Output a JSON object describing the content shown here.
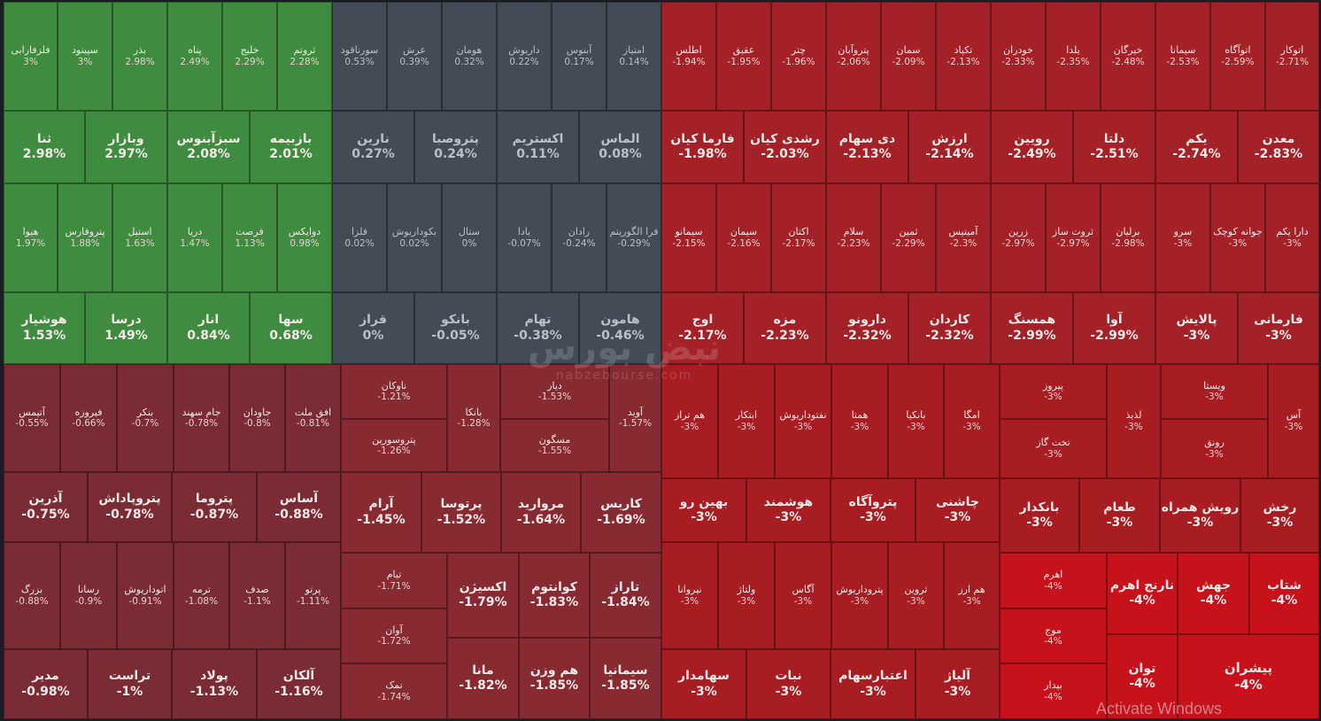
{
  "watermark": {
    "logo": "نبض بورس",
    "url": "nabzebourse.com"
  },
  "activation_notice": "Activate Windows",
  "tiles": [
    {
      "n": "فلزفارابی",
      "p": "3%",
      "c": "green",
      "t": "s"
    },
    {
      "n": "سپینود",
      "p": "3%",
      "c": "green",
      "t": "s"
    },
    {
      "n": "بذر",
      "p": "2.98%",
      "c": "green",
      "t": "s"
    },
    {
      "n": "پناه",
      "p": "2.49%",
      "c": "green",
      "t": "s"
    },
    {
      "n": "خلیج",
      "p": "2.29%",
      "c": "green",
      "t": "s"
    },
    {
      "n": "ثروتم",
      "p": "2.28%",
      "c": "green",
      "t": "s"
    },
    {
      "n": "سورناقود",
      "p": "0.53%",
      "c": "gray",
      "t": "s"
    },
    {
      "n": "عرش",
      "p": "0.39%",
      "c": "gray",
      "t": "s"
    },
    {
      "n": "هومان",
      "p": "0.32%",
      "c": "gray",
      "t": "s"
    },
    {
      "n": "داریوش",
      "p": "0.22%",
      "c": "gray",
      "t": "s"
    },
    {
      "n": "آبنوس",
      "p": "0.17%",
      "c": "gray",
      "t": "s"
    },
    {
      "n": "امتیاز",
      "p": "0.14%",
      "c": "gray",
      "t": "s"
    },
    {
      "n": "اطلس",
      "p": "-1.94%",
      "c": "red1",
      "t": "s"
    },
    {
      "n": "عقیق",
      "p": "-1.95%",
      "c": "red1",
      "t": "s"
    },
    {
      "n": "چتر",
      "p": "-1.96%",
      "c": "red1",
      "t": "s"
    },
    {
      "n": "پتروآبان",
      "p": "-2.06%",
      "c": "red1",
      "t": "s"
    },
    {
      "n": "سمان",
      "p": "-2.09%",
      "c": "red1",
      "t": "s"
    },
    {
      "n": "تکپاد",
      "p": "-2.13%",
      "c": "red1",
      "t": "s"
    },
    {
      "n": "خودران",
      "p": "-2.33%",
      "c": "red1",
      "t": "s"
    },
    {
      "n": "یلدا",
      "p": "-2.35%",
      "c": "red1",
      "t": "s"
    },
    {
      "n": "خیرگان",
      "p": "-2.48%",
      "c": "red1",
      "t": "s"
    },
    {
      "n": "سیمانا",
      "p": "-2.53%",
      "c": "red1",
      "t": "s"
    },
    {
      "n": "اتوآگاه",
      "p": "-2.59%",
      "c": "red1",
      "t": "s"
    },
    {
      "n": "اتوکار",
      "p": "-2.71%",
      "c": "red1",
      "t": "s"
    },
    {
      "n": "ثنا",
      "p": "2.98%",
      "c": "green",
      "t": "m"
    },
    {
      "n": "وبازار",
      "p": "2.97%",
      "c": "green",
      "t": "m"
    },
    {
      "n": "سبزآبنوس",
      "p": "2.08%",
      "c": "green",
      "t": "m"
    },
    {
      "n": "بازبیمه",
      "p": "2.01%",
      "c": "green",
      "t": "m"
    },
    {
      "n": "نارین",
      "p": "0.27%",
      "c": "gray",
      "t": "m"
    },
    {
      "n": "پتروصبا",
      "p": "0.24%",
      "c": "gray",
      "t": "m"
    },
    {
      "n": "اکستریم",
      "p": "0.11%",
      "c": "gray",
      "t": "m"
    },
    {
      "n": "الماس",
      "p": "0.08%",
      "c": "gray",
      "t": "m"
    },
    {
      "n": "فارما کیان",
      "p": "-1.98%",
      "c": "red1",
      "t": "m"
    },
    {
      "n": "رشدی کیان",
      "p": "-2.03%",
      "c": "red1",
      "t": "m"
    },
    {
      "n": "دی سهام",
      "p": "-2.13%",
      "c": "red1",
      "t": "m"
    },
    {
      "n": "ارزش",
      "p": "-2.14%",
      "c": "red1",
      "t": "m"
    },
    {
      "n": "رویین",
      "p": "-2.49%",
      "c": "red1",
      "t": "m"
    },
    {
      "n": "دلتا",
      "p": "-2.51%",
      "c": "red1",
      "t": "m"
    },
    {
      "n": "یکم",
      "p": "-2.74%",
      "c": "red1",
      "t": "m"
    },
    {
      "n": "معدن",
      "p": "-2.83%",
      "c": "red1",
      "t": "m"
    },
    {
      "n": "هیوا",
      "p": "1.97%",
      "c": "green",
      "t": "s"
    },
    {
      "n": "پتروفارس",
      "p": "1.88%",
      "c": "green",
      "t": "s"
    },
    {
      "n": "استیل",
      "p": "1.63%",
      "c": "green",
      "t": "s"
    },
    {
      "n": "دریا",
      "p": "1.47%",
      "c": "green",
      "t": "s"
    },
    {
      "n": "فرصت",
      "p": "1.13%",
      "c": "green",
      "t": "s"
    },
    {
      "n": "دوایکس",
      "p": "0.98%",
      "c": "green",
      "t": "s"
    },
    {
      "n": "فلزا",
      "p": "0.02%",
      "c": "gray",
      "t": "s"
    },
    {
      "n": "بکوداریوش",
      "p": "0.02%",
      "c": "gray",
      "t": "s"
    },
    {
      "n": "ستال",
      "p": "0%",
      "c": "gray",
      "t": "s"
    },
    {
      "n": "یادا",
      "p": "-0.07%",
      "c": "gray",
      "t": "s"
    },
    {
      "n": "رادان",
      "p": "-0.24%",
      "c": "gray",
      "t": "s"
    },
    {
      "n": "فرا الگوریتم",
      "p": "-0.29%",
      "c": "gray",
      "t": "s"
    },
    {
      "n": "سیمانو",
      "p": "-2.15%",
      "c": "red1",
      "t": "s"
    },
    {
      "n": "سیمان",
      "p": "-2.16%",
      "c": "red1",
      "t": "s"
    },
    {
      "n": "اکتان",
      "p": "-2.17%",
      "c": "red1",
      "t": "s"
    },
    {
      "n": "سلام",
      "p": "-2.23%",
      "c": "red1",
      "t": "s"
    },
    {
      "n": "ثمین",
      "p": "-2.29%",
      "c": "red1",
      "t": "s"
    },
    {
      "n": "آمیتیس",
      "p": "-2.3%",
      "c": "red1",
      "t": "s"
    },
    {
      "n": "زرین",
      "p": "-2.97%",
      "c": "red1",
      "t": "s"
    },
    {
      "n": "ثروت ساز",
      "p": "-2.97%",
      "c": "red1",
      "t": "s"
    },
    {
      "n": "برلیان",
      "p": "-2.98%",
      "c": "red1",
      "t": "s"
    },
    {
      "n": "سرو",
      "p": "-3%",
      "c": "red1",
      "t": "s"
    },
    {
      "n": "جوانه کوچک",
      "p": "-3%",
      "c": "red1",
      "t": "s"
    },
    {
      "n": "دارا یکم",
      "p": "-3%",
      "c": "red1",
      "t": "s"
    },
    {
      "n": "هوشیار",
      "p": "1.53%",
      "c": "green",
      "t": "m"
    },
    {
      "n": "درسا",
      "p": "1.49%",
      "c": "green",
      "t": "m"
    },
    {
      "n": "انار",
      "p": "0.84%",
      "c": "green",
      "t": "m"
    },
    {
      "n": "سها",
      "p": "0.68%",
      "c": "green",
      "t": "m"
    },
    {
      "n": "قراز",
      "p": "0%",
      "c": "gray",
      "t": "m"
    },
    {
      "n": "بانکو",
      "p": "-0.05%",
      "c": "gray",
      "t": "m"
    },
    {
      "n": "تهام",
      "p": "-0.38%",
      "c": "gray",
      "t": "m"
    },
    {
      "n": "هامون",
      "p": "-0.46%",
      "c": "gray",
      "t": "m"
    },
    {
      "n": "اوج",
      "p": "-2.17%",
      "c": "red1",
      "t": "m"
    },
    {
      "n": "مزه",
      "p": "-2.23%",
      "c": "red1",
      "t": "m"
    },
    {
      "n": "دارونو",
      "p": "-2.32%",
      "c": "red1",
      "t": "m"
    },
    {
      "n": "کاردان",
      "p": "-2.32%",
      "c": "red1",
      "t": "m"
    },
    {
      "n": "همسنگ",
      "p": "-2.99%",
      "c": "red1",
      "t": "m"
    },
    {
      "n": "آوا",
      "p": "-2.99%",
      "c": "red1",
      "t": "m"
    },
    {
      "n": "پالایش",
      "p": "-3%",
      "c": "red1",
      "t": "m"
    },
    {
      "n": "فارمانی",
      "p": "-3%",
      "c": "red1",
      "t": "m"
    },
    {
      "n": "آتیمس",
      "p": "-0.55%",
      "c": "dred",
      "t": "s"
    },
    {
      "n": "فیروزه",
      "p": "-0.66%",
      "c": "dred",
      "t": "s"
    },
    {
      "n": "بنکر",
      "p": "-0.7%",
      "c": "dred",
      "t": "s"
    },
    {
      "n": "جام سهند",
      "p": "-0.78%",
      "c": "dred",
      "t": "s"
    },
    {
      "n": "جاودان",
      "p": "-0.8%",
      "c": "dred",
      "t": "s"
    },
    {
      "n": "افق ملت",
      "p": "-0.81%",
      "c": "dred",
      "t": "s"
    },
    {
      "n": "آذرین",
      "p": "-0.75%",
      "c": "dred",
      "t": "m"
    },
    {
      "n": "پتروپاداش",
      "p": "-0.78%",
      "c": "dred",
      "t": "m"
    },
    {
      "n": "پتروما",
      "p": "-0.87%",
      "c": "dred",
      "t": "m"
    },
    {
      "n": "آساس",
      "p": "-0.88%",
      "c": "dred",
      "t": "m"
    },
    {
      "n": "بزرگ",
      "p": "-0.88%",
      "c": "dred",
      "t": "s"
    },
    {
      "n": "رسانا",
      "p": "-0.9%",
      "c": "dred",
      "t": "s"
    },
    {
      "n": "اتوداریوش",
      "p": "-0.91%",
      "c": "dred",
      "t": "s"
    },
    {
      "n": "ترمه",
      "p": "-1.08%",
      "c": "dred",
      "t": "s"
    },
    {
      "n": "صدف",
      "p": "-1.1%",
      "c": "dred",
      "t": "s"
    },
    {
      "n": "پرتو",
      "p": "-1.11%",
      "c": "dred",
      "t": "s"
    },
    {
      "n": "مدیر",
      "p": "-0.98%",
      "c": "dred",
      "t": "m"
    },
    {
      "n": "تراست",
      "p": "-1%",
      "c": "dred",
      "t": "m"
    },
    {
      "n": "پولاد",
      "p": "-1.13%",
      "c": "dred",
      "t": "m"
    },
    {
      "n": "آلکان",
      "p": "-1.16%",
      "c": "dred",
      "t": "m"
    },
    {
      "n": "ناوکان",
      "p": "-1.21%",
      "c": "dred2",
      "t": "s"
    },
    {
      "n": "پتروسورین",
      "p": "-1.26%",
      "c": "dred2",
      "t": "s"
    },
    {
      "n": "بانکا",
      "p": "-1.28%",
      "c": "dred2",
      "t": "s"
    },
    {
      "n": "دیار",
      "p": "-1.53%",
      "c": "dred2",
      "t": "s"
    },
    {
      "n": "مسگون",
      "p": "-1.55%",
      "c": "dred2",
      "t": "s"
    },
    {
      "n": "آوید",
      "p": "-1.57%",
      "c": "dred2",
      "t": "s"
    },
    {
      "n": "آرام",
      "p": "-1.45%",
      "c": "dred2",
      "t": "m"
    },
    {
      "n": "پرتوسا",
      "p": "-1.52%",
      "c": "dred2",
      "t": "m"
    },
    {
      "n": "مروارید",
      "p": "-1.64%",
      "c": "dred2",
      "t": "m"
    },
    {
      "n": "کاریس",
      "p": "-1.69%",
      "c": "dred2",
      "t": "m"
    },
    {
      "n": "تیام",
      "p": "-1.71%",
      "c": "dred2",
      "t": "s"
    },
    {
      "n": "آوان",
      "p": "-1.72%",
      "c": "dred2",
      "t": "s"
    },
    {
      "n": "نمک",
      "p": "-1.74%",
      "c": "dred2",
      "t": "s"
    },
    {
      "n": "اکسیژن",
      "p": "-1.79%",
      "c": "dred2",
      "t": "m"
    },
    {
      "n": "کوانتوم",
      "p": "-1.83%",
      "c": "dred2",
      "t": "m"
    },
    {
      "n": "تاراز",
      "p": "-1.84%",
      "c": "dred2",
      "t": "m"
    },
    {
      "n": "مانا",
      "p": "-1.82%",
      "c": "dred2",
      "t": "m"
    },
    {
      "n": "هم وزن",
      "p": "-1.85%",
      "c": "dred2",
      "t": "m"
    },
    {
      "n": "سیمانیا",
      "p": "-1.85%",
      "c": "dred2",
      "t": "m"
    },
    {
      "n": "هم تراز",
      "p": "-3%",
      "c": "red2",
      "t": "s"
    },
    {
      "n": "ابتکار",
      "p": "-3%",
      "c": "red2",
      "t": "s"
    },
    {
      "n": "نفتوداریوش",
      "p": "-3%",
      "c": "red2",
      "t": "s"
    },
    {
      "n": "همتا",
      "p": "-3%",
      "c": "red2",
      "t": "s"
    },
    {
      "n": "بانکیا",
      "p": "-3%",
      "c": "red2",
      "t": "s"
    },
    {
      "n": "امگا",
      "p": "-3%",
      "c": "red2",
      "t": "s"
    },
    {
      "n": "بهین رو",
      "p": "-3%",
      "c": "red2",
      "t": "m"
    },
    {
      "n": "هوشمند",
      "p": "-3%",
      "c": "red2",
      "t": "m"
    },
    {
      "n": "پتروآگاه",
      "p": "-3%",
      "c": "red2",
      "t": "m"
    },
    {
      "n": "چاشنی",
      "p": "-3%",
      "c": "red2",
      "t": "m"
    },
    {
      "n": "نیروانا",
      "p": "-3%",
      "c": "red2",
      "t": "s"
    },
    {
      "n": "ولتاژ",
      "p": "-3%",
      "c": "red2",
      "t": "s"
    },
    {
      "n": "آگاس",
      "p": "-3%",
      "c": "red2",
      "t": "s"
    },
    {
      "n": "پتروداریوش",
      "p": "-3%",
      "c": "red2",
      "t": "s"
    },
    {
      "n": "ثروین",
      "p": "-3%",
      "c": "red2",
      "t": "s"
    },
    {
      "n": "هم ارز",
      "p": "-3%",
      "c": "red2",
      "t": "s"
    },
    {
      "n": "سهامدار",
      "p": "-3%",
      "c": "red2",
      "t": "m"
    },
    {
      "n": "نبات",
      "p": "-3%",
      "c": "red2",
      "t": "m"
    },
    {
      "n": "اعتبارسهام",
      "p": "-3%",
      "c": "red2",
      "t": "m"
    },
    {
      "n": "آلیاژ",
      "p": "-3%",
      "c": "red2",
      "t": "m"
    },
    {
      "n": "پیروز",
      "p": "-3%",
      "c": "red2",
      "t": "s"
    },
    {
      "n": "تخت گاز",
      "p": "-3%",
      "c": "red2",
      "t": "s"
    },
    {
      "n": "لذیذ",
      "p": "-3%",
      "c": "red2",
      "t": "s"
    },
    {
      "n": "ویستا",
      "p": "-3%",
      "c": "red2",
      "t": "s"
    },
    {
      "n": "رونق",
      "p": "-3%",
      "c": "red2",
      "t": "s"
    },
    {
      "n": "آس",
      "p": "-3%",
      "c": "red2",
      "t": "s"
    },
    {
      "n": "بانکدار",
      "p": "-3%",
      "c": "red2",
      "t": "m"
    },
    {
      "n": "طعام",
      "p": "-3%",
      "c": "red2",
      "t": "m"
    },
    {
      "n": "رویش همراه",
      "p": "-3%",
      "c": "red2",
      "t": "m"
    },
    {
      "n": "رخش",
      "p": "-3%",
      "c": "red2",
      "t": "m"
    },
    {
      "n": "اهرم",
      "p": "-4%",
      "c": "bright",
      "t": "s"
    },
    {
      "n": "موج",
      "p": "-4%",
      "c": "bright",
      "t": "s"
    },
    {
      "n": "بیدار",
      "p": "-4%",
      "c": "bright",
      "t": "s"
    },
    {
      "n": "نارنج اهرم",
      "p": "-4%",
      "c": "bright",
      "t": "m"
    },
    {
      "n": "جهش",
      "p": "-4%",
      "c": "bright",
      "t": "m"
    },
    {
      "n": "شتاب",
      "p": "-4%",
      "c": "bright",
      "t": "m"
    },
    {
      "n": "توان",
      "p": "-4%",
      "c": "bright",
      "t": "m"
    },
    {
      "n": "پیشران",
      "p": "-4%",
      "c": "bright",
      "t": "l"
    }
  ]
}
